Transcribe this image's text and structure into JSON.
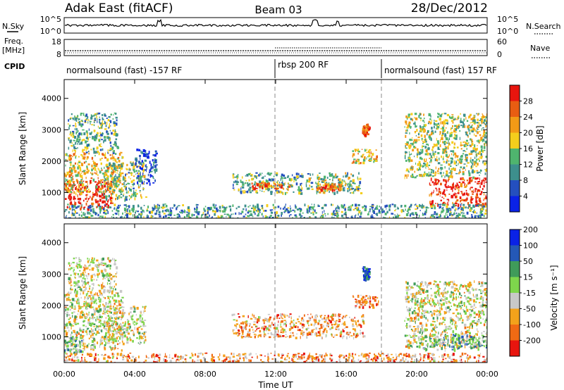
{
  "header": {
    "title": "Adak East (fitACF)",
    "beam": "Beam 03",
    "date": "28/Dec/2012"
  },
  "nsky_panel": {
    "left_label": "N.Sky",
    "right_label": "N.Search",
    "left_ticks": [
      "10^5",
      "10^0"
    ],
    "right_ticks": [
      "10^5",
      "10^0"
    ]
  },
  "freq_panel": {
    "left_label_line1": "Freq.",
    "left_label_line2": "[MHz]",
    "right_label": "Nave",
    "left_ticks": [
      "18",
      "8"
    ],
    "right_ticks": [
      "60",
      "0"
    ]
  },
  "cpid": {
    "label": "CPID",
    "segments": [
      {
        "name": "normalsound (fast) -157 RF",
        "start_h": 0,
        "end_h": 12
      },
      {
        "name": "rbsp 200 RF",
        "start_h": 12,
        "end_h": 18
      },
      {
        "name": "normalsound (fast) 157 RF",
        "start_h": 18,
        "end_h": 24
      }
    ]
  },
  "chart_data": [
    {
      "type": "heatmap",
      "name": "Power",
      "xlabel": "",
      "ylabel": "Slant Range [km]",
      "xlim": [
        0,
        24
      ],
      "ylim": [
        180,
        4600
      ],
      "yticks": [
        1000,
        2000,
        3000,
        4000
      ],
      "colorbar": {
        "label": "Power [dB]",
        "ticks": [
          "4",
          "8",
          "12",
          "16",
          "20",
          "24",
          "28"
        ],
        "colors": [
          "#0a22e6",
          "#244fbe",
          "#3d8f8d",
          "#4fb46e",
          "#f4ce1c",
          "#f29a16",
          "#e85d12",
          "#e8150e"
        ]
      },
      "echo_regions": [
        {
          "t0": 0.0,
          "t1": 2.7,
          "r0": 500,
          "r1": 1400,
          "level": 0.96
        },
        {
          "t0": 0.0,
          "t1": 3.3,
          "r0": 1000,
          "r1": 2300,
          "level": 0.6
        },
        {
          "t0": 0.2,
          "t1": 3.0,
          "r0": 2300,
          "r1": 3550,
          "level": 0.4
        },
        {
          "t0": 2.2,
          "t1": 4.6,
          "r0": 800,
          "r1": 2000,
          "level": 0.45
        },
        {
          "t0": 4.0,
          "t1": 5.2,
          "r0": 1300,
          "r1": 2400,
          "level": 0.2
        },
        {
          "t0": 9.5,
          "t1": 13.5,
          "r0": 1000,
          "r1": 1650,
          "level": 0.4
        },
        {
          "t0": 10.6,
          "t1": 12.8,
          "r0": 1130,
          "r1": 1330,
          "level": 0.78
        },
        {
          "t0": 13.7,
          "t1": 16.8,
          "r0": 1000,
          "r1": 1650,
          "level": 0.45
        },
        {
          "t0": 14.3,
          "t1": 15.7,
          "r0": 1100,
          "r1": 1300,
          "level": 0.8
        },
        {
          "t0": 16.3,
          "t1": 17.7,
          "r0": 1950,
          "r1": 2400,
          "level": 0.6
        },
        {
          "t0": 16.9,
          "t1": 17.3,
          "r0": 2850,
          "r1": 3200,
          "level": 0.85
        },
        {
          "t0": 19.3,
          "t1": 24.0,
          "r0": 1500,
          "r1": 3550,
          "level": 0.5
        },
        {
          "t0": 20.7,
          "t1": 24.0,
          "r0": 600,
          "r1": 1500,
          "level": 0.92
        },
        {
          "t0": 0.0,
          "t1": 24.0,
          "r0": 180,
          "r1": 650,
          "level": 0.35
        }
      ]
    },
    {
      "type": "heatmap",
      "name": "Velocity",
      "xlabel": "Time UT",
      "ylabel": "Slant Range [km]",
      "xlim": [
        0,
        24
      ],
      "ylim": [
        180,
        4600
      ],
      "yticks": [
        1000,
        2000,
        3000,
        4000
      ],
      "xticks": [
        "00:00",
        "04:00",
        "08:00",
        "12:00",
        "16:00",
        "20:00",
        "00:00"
      ],
      "xtick_hours": [
        0,
        4,
        8,
        12,
        16,
        20,
        24
      ],
      "colorbar": {
        "label": "Velocity [m s⁻¹]",
        "ticks": [
          "-200",
          "-100",
          "-50",
          "-15",
          "15",
          "50",
          "100",
          "200"
        ],
        "colors": [
          "#e8150e",
          "#f06a14",
          "#f3a21b",
          "#c8c8c8",
          "#7ed64c",
          "#3f9b5a",
          "#2458b6",
          "#0a22e6"
        ]
      },
      "echo_regions": [
        {
          "t0": 0.0,
          "t1": 3.3,
          "r0": 600,
          "r1": 2500,
          "level": 0.45
        },
        {
          "t0": 0.0,
          "t1": 1.0,
          "r0": 500,
          "r1": 1000,
          "level": 0.6
        },
        {
          "t0": 0.2,
          "t1": 3.0,
          "r0": 2500,
          "r1": 3550,
          "level": 0.45
        },
        {
          "t0": 2.2,
          "t1": 4.6,
          "r0": 800,
          "r1": 2000,
          "level": 0.45
        },
        {
          "t0": 9.5,
          "t1": 17.0,
          "r0": 1000,
          "r1": 1750,
          "level": 0.3
        },
        {
          "t0": 16.3,
          "t1": 17.8,
          "r0": 1950,
          "r1": 2350,
          "level": 0.25
        },
        {
          "t0": 16.9,
          "t1": 17.3,
          "r0": 2850,
          "r1": 3250,
          "level": 0.9
        },
        {
          "t0": 19.3,
          "t1": 24.0,
          "r0": 700,
          "r1": 2800,
          "level": 0.45
        },
        {
          "t0": 20.3,
          "t1": 24.0,
          "r0": 600,
          "r1": 1100,
          "level": 0.6
        },
        {
          "t0": 0.0,
          "t1": 24.0,
          "r0": 180,
          "r1": 500,
          "level": 0.28
        }
      ]
    }
  ]
}
